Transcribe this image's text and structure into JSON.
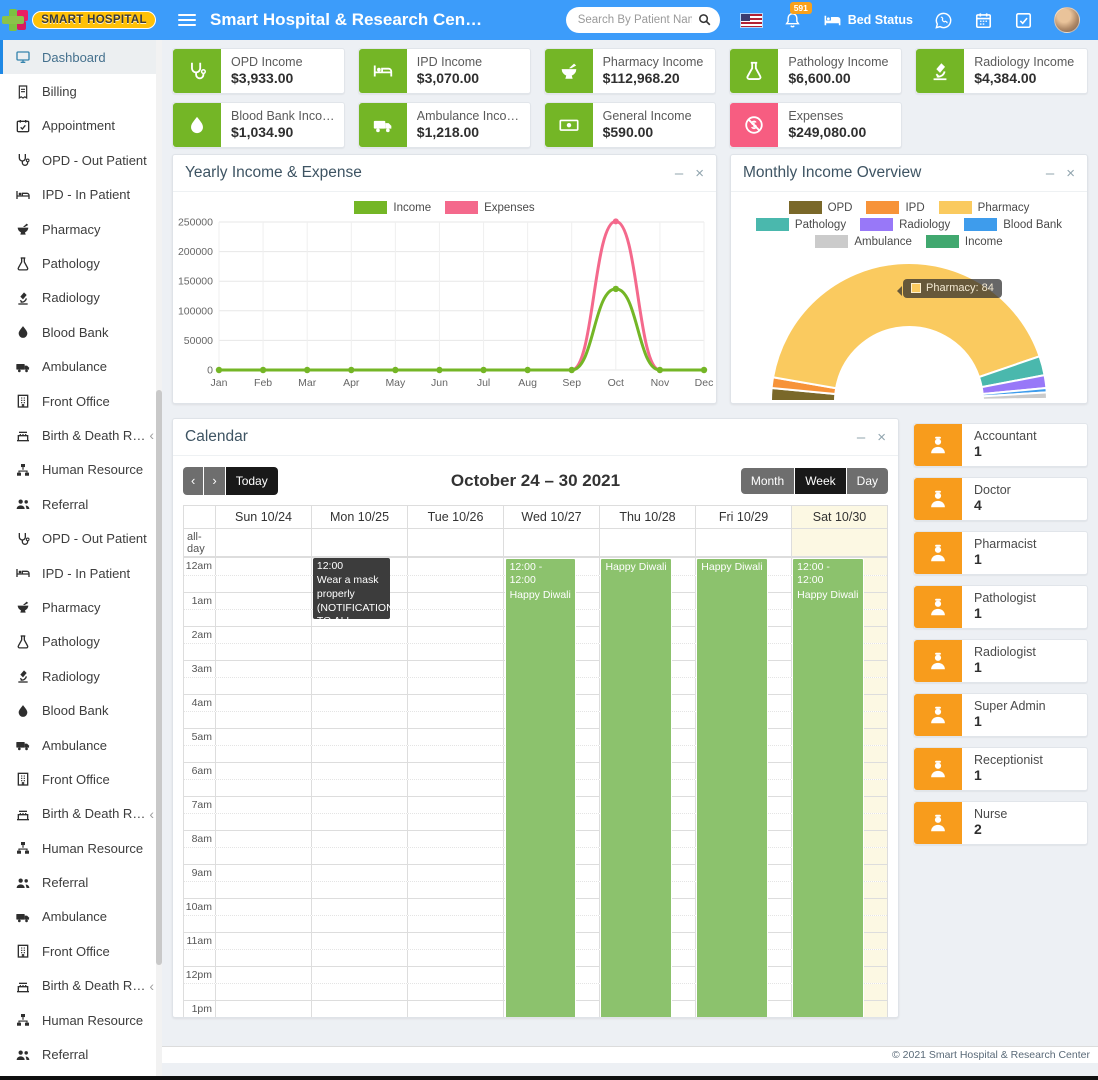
{
  "header": {
    "logo_text": "SMART HOSPITAL",
    "title": "Smart Hospital & Research Cen…",
    "search_placeholder": "Search By Patient Name",
    "notification_badge": "591",
    "bed_status_label": "Bed Status"
  },
  "icons": {
    "minimize": "–",
    "close": "×",
    "chev_left": "‹",
    "chev_right": "›"
  },
  "sidebar": {
    "items": [
      {
        "label": "Dashboard",
        "icon": "monitor",
        "active": true
      },
      {
        "label": "Billing",
        "icon": "receipt"
      },
      {
        "label": "Appointment",
        "icon": "calendar-check"
      },
      {
        "label": "OPD - Out Patient",
        "icon": "stethoscope"
      },
      {
        "label": "IPD - In Patient",
        "icon": "bed"
      },
      {
        "label": "Pharmacy",
        "icon": "mortar"
      },
      {
        "label": "Pathology",
        "icon": "flask"
      },
      {
        "label": "Radiology",
        "icon": "microscope"
      },
      {
        "label": "Blood Bank",
        "icon": "drop"
      },
      {
        "label": "Ambulance",
        "icon": "ambulance"
      },
      {
        "label": "Front Office",
        "icon": "building"
      },
      {
        "label": "Birth & Death Record",
        "icon": "birth-record",
        "has_submenu": true
      },
      {
        "label": "Human Resource",
        "icon": "hierarchy"
      },
      {
        "label": "Referral",
        "icon": "users"
      },
      {
        "label": "OPD - Out Patient",
        "icon": "stethoscope"
      },
      {
        "label": "IPD - In Patient",
        "icon": "bed"
      },
      {
        "label": "Pharmacy",
        "icon": "mortar"
      },
      {
        "label": "Pathology",
        "icon": "flask"
      },
      {
        "label": "Radiology",
        "icon": "microscope"
      },
      {
        "label": "Blood Bank",
        "icon": "drop"
      },
      {
        "label": "Ambulance",
        "icon": "ambulance"
      },
      {
        "label": "Front Office",
        "icon": "building"
      },
      {
        "label": "Birth & Death Record",
        "icon": "birth-record",
        "has_submenu": true
      },
      {
        "label": "Human Resource",
        "icon": "hierarchy"
      },
      {
        "label": "Referral",
        "icon": "users"
      },
      {
        "label": "Ambulance",
        "icon": "ambulance"
      },
      {
        "label": "Front Office",
        "icon": "building"
      },
      {
        "label": "Birth & Death Record",
        "icon": "birth-record",
        "has_submenu": true
      },
      {
        "label": "Human Resource",
        "icon": "hierarchy"
      },
      {
        "label": "Referral",
        "icon": "users"
      }
    ]
  },
  "income_cards": [
    {
      "title": "OPD Income",
      "value": "$3,933.00",
      "icon": "stethoscope",
      "accent": "green"
    },
    {
      "title": "IPD Income",
      "value": "$3,070.00",
      "icon": "bed",
      "accent": "green"
    },
    {
      "title": "Pharmacy Income",
      "value": "$112,968.20",
      "icon": "mortar",
      "accent": "green"
    },
    {
      "title": "Pathology Income",
      "value": "$6,600.00",
      "icon": "flask",
      "accent": "green"
    },
    {
      "title": "Radiology Income",
      "value": "$4,384.00",
      "icon": "microscope",
      "accent": "green"
    },
    {
      "title": "Blood Bank Income_…",
      "value": "$1,034.90",
      "icon": "drop",
      "accent": "green"
    },
    {
      "title": "Ambulance Income",
      "value": "$1,218.00",
      "icon": "ambulance",
      "accent": "green"
    },
    {
      "title": "General Income",
      "value": "$590.00",
      "icon": "banknote",
      "accent": "green"
    },
    {
      "title": "Expenses",
      "value": "$249,080.00",
      "icon": "ban-dollar",
      "accent": "pink"
    }
  ],
  "panels": {
    "yearly": {
      "title": "Yearly Income & Expense",
      "chart_data": {
        "type": "line",
        "categories": [
          "Jan",
          "Feb",
          "Mar",
          "Apr",
          "May",
          "Jun",
          "Jul",
          "Aug",
          "Sep",
          "Oct",
          "Nov",
          "Dec"
        ],
        "series": [
          {
            "name": "Income",
            "color": "#74B626",
            "values": [
              0,
              0,
              0,
              0,
              0,
              0,
              0,
              0,
              0,
              137000,
              0,
              0
            ]
          },
          {
            "name": "Expenses",
            "color": "#F4698C",
            "values": [
              0,
              0,
              0,
              0,
              0,
              0,
              0,
              0,
              0,
              251000,
              0,
              0
            ]
          }
        ],
        "ylim": [
          0,
          250000
        ],
        "yticks": [
          0,
          50000,
          100000,
          150000,
          200000,
          250000
        ],
        "legend_position": "top",
        "grid": true
      }
    },
    "monthly": {
      "title": "Monthly Income Overview",
      "tooltip": "Pharmacy: 84",
      "chart_data": {
        "type": "pie",
        "shape": "half-doughnut",
        "labels": [
          "OPD",
          "IPD",
          "Pharmacy",
          "Pathology",
          "Radiology",
          "Blood Bank",
          "Ambulance",
          "Income"
        ],
        "values": [
          3,
          2.5,
          84,
          4.5,
          3,
          1,
          1.5,
          0.5
        ],
        "colors": [
          "#7A6829",
          "#F79339",
          "#FACA5F",
          "#4AB8AD",
          "#9878F8",
          "#3E9CEC",
          "#CBCBCB",
          "#41A86F"
        ],
        "legend_position": "top"
      }
    },
    "calendar": {
      "title": "Calendar",
      "today_label": "Today",
      "range_title": "October 24 – 30 2021",
      "views": [
        {
          "label": "Month",
          "active": false
        },
        {
          "label": "Week",
          "active": true
        },
        {
          "label": "Day",
          "active": false
        }
      ],
      "allday_label": "all-day",
      "columns": [
        "Sun 10/24",
        "Mon 10/25",
        "Tue 10/26",
        "Wed 10/27",
        "Thu 10/28",
        "Fri 10/29",
        "Sat 10/30"
      ],
      "today_column_index": 6,
      "time_labels": [
        "12am",
        "1am",
        "2am",
        "3am",
        "4am",
        "5am",
        "6am",
        "7am",
        "8am",
        "9am",
        "10am",
        "11am",
        "12pm",
        "1pm"
      ],
      "events": [
        {
          "day": 1,
          "time": "12:00",
          "title": "Wear a mask properly (NOTIFICATION TO ALL STAFF",
          "style": "notice"
        },
        {
          "day": 3,
          "time": "12:00 - 12:00",
          "title": "Happy Diwali",
          "style": "holiday"
        },
        {
          "day": 4,
          "time": "",
          "title": "Happy Diwali",
          "style": "holiday"
        },
        {
          "day": 5,
          "time": "",
          "title": "Happy Diwali",
          "style": "holiday"
        },
        {
          "day": 6,
          "time": "12:00 - 12:00",
          "title": "Happy Diwali",
          "style": "holiday"
        }
      ]
    }
  },
  "staff_cards": [
    {
      "role": "Accountant",
      "count": "1"
    },
    {
      "role": "Doctor",
      "count": "4"
    },
    {
      "role": "Pharmacist",
      "count": "1"
    },
    {
      "role": "Pathologist",
      "count": "1"
    },
    {
      "role": "Radiologist",
      "count": "1"
    },
    {
      "role": "Super Admin",
      "count": "1"
    },
    {
      "role": "Receptionist",
      "count": "1"
    },
    {
      "role": "Nurse",
      "count": "2"
    }
  ],
  "footer": {
    "copyright": "© 2021 Smart Hospital & Research Center"
  }
}
